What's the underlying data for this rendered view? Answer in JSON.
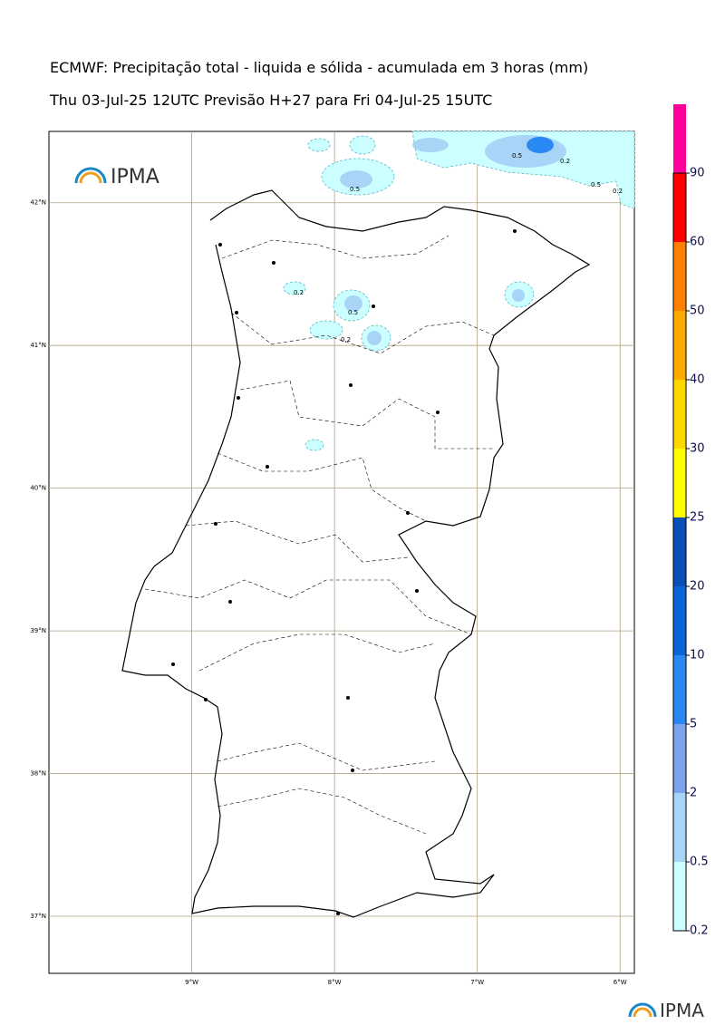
{
  "header": {
    "title": "ECMWF: Precipitação total - liquida e sólida - acumulada em 3 horas (mm)",
    "subtitle": "Thu 03-Jul-25 12UTC Previsão H+27 para Fri 04-Jul-25 15UTC"
  },
  "logo": "IPMA",
  "map": {
    "lon_range": [
      -10,
      -5.9
    ],
    "lat_range": [
      36.6,
      42.5
    ],
    "lon_ticks": [
      {
        "value": -9,
        "label": "9°W"
      },
      {
        "value": -8,
        "label": "8°W"
      },
      {
        "value": -7,
        "label": "7°W"
      },
      {
        "value": -6,
        "label": "6°W"
      }
    ],
    "lat_ticks": [
      {
        "value": 42,
        "label": "42°N"
      },
      {
        "value": 41,
        "label": "41°N"
      },
      {
        "value": 40,
        "label": "40°N"
      },
      {
        "value": 39,
        "label": "39°N"
      },
      {
        "value": 38,
        "label": "38°N"
      },
      {
        "value": 37,
        "label": "37°N"
      }
    ],
    "contour_labels": [
      "0.5",
      "0.2",
      "0.5",
      "0.2",
      "0.5",
      "0.2",
      "0.5",
      "0.2"
    ]
  },
  "colorbar": {
    "levels": [
      0.2,
      0.5,
      2,
      5,
      10,
      20,
      25,
      30,
      40,
      50,
      60,
      90
    ],
    "colors": [
      "#ccffff",
      "#a8d4f8",
      "#7fa2ee",
      "#2a88f2",
      "#0a66d8",
      "#0a4fb8",
      "#ffff00",
      "#ffd700",
      "#ffaa00",
      "#ff7f00",
      "#ff0000",
      "#ff0099"
    ]
  }
}
